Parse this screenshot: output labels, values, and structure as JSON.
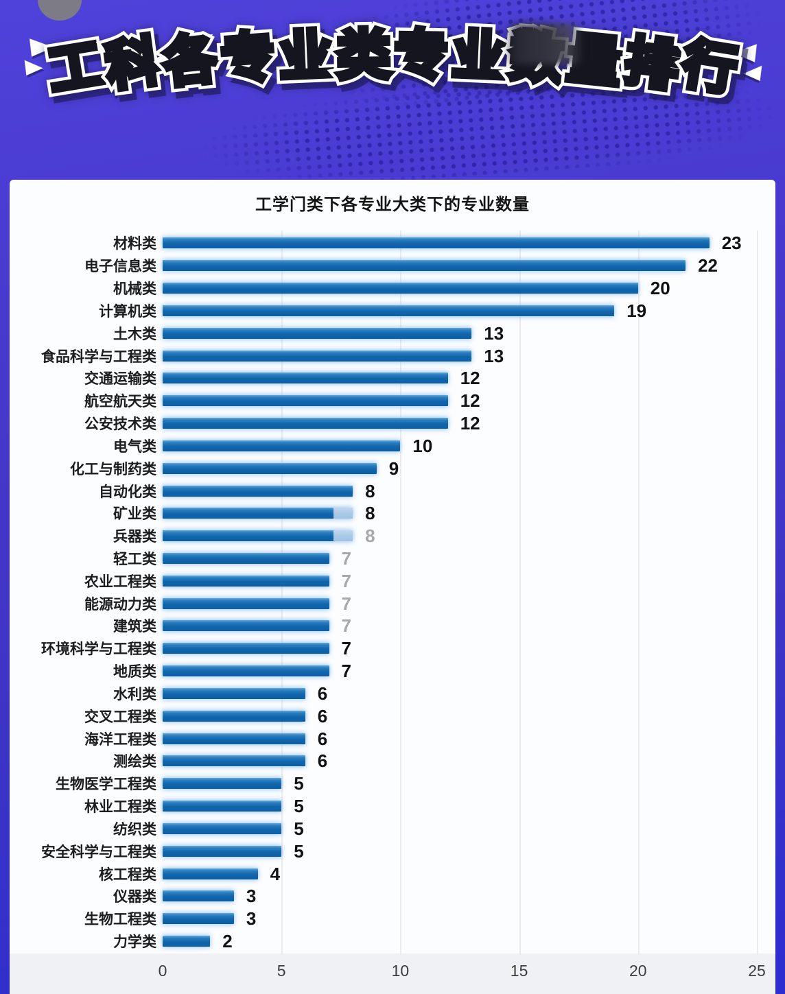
{
  "header": {
    "title": "工科各专业类专业数量排行",
    "censored_char_index": 8,
    "decor": {
      "speed_marks": "double-white-wedge emphasis lines, left and right of title",
      "halftone": "dark-blue dot bands above and below title",
      "corner_blob": "gray circle partially visible at top-left"
    }
  },
  "chart": {
    "title": "工学门类下各专业大类下的专业数量"
  },
  "chart_data": {
    "type": "bar",
    "orientation": "horizontal",
    "title": "工学门类下各专业大类下的专业数量",
    "xlabel": "",
    "ylabel": "",
    "xlim": [
      0,
      25
    ],
    "x_ticks": [
      0,
      5,
      10,
      15,
      20,
      25
    ],
    "grid": "vertical light gridlines",
    "legend": "none",
    "bars": [
      {
        "category": "材料类",
        "value": 23
      },
      {
        "category": "电子信息类",
        "value": 22
      },
      {
        "category": "机械类",
        "value": 20
      },
      {
        "category": "计算机类",
        "value": 19
      },
      {
        "category": "土木类",
        "value": 13
      },
      {
        "category": "食品科学与工程类",
        "value": 13
      },
      {
        "category": "交通运输类",
        "value": 12
      },
      {
        "category": "航空航天类",
        "value": 12
      },
      {
        "category": "公安技术类",
        "value": 12
      },
      {
        "category": "电气类",
        "value": 10
      },
      {
        "category": "化工与制药类",
        "value": 9
      },
      {
        "category": "自动化类",
        "value": 8
      },
      {
        "category": "矿业类",
        "value": 8,
        "transition_tip_from": 7.2
      },
      {
        "category": "兵器类",
        "value": 8,
        "transition_tip_from": 7.2,
        "value_label_muted": true
      },
      {
        "category": "轻工类",
        "value": 7,
        "value_label_muted": true
      },
      {
        "category": "农业工程类",
        "value": 7,
        "value_label_muted": true
      },
      {
        "category": "能源动力类",
        "value": 7,
        "value_label_muted": true
      },
      {
        "category": "建筑类",
        "value": 7,
        "value_label_muted": true
      },
      {
        "category": "环境科学与工程类",
        "value": 7
      },
      {
        "category": "地质类",
        "value": 7
      },
      {
        "category": "水利类",
        "value": 6
      },
      {
        "category": "交叉工程类",
        "value": 6
      },
      {
        "category": "海洋工程类",
        "value": 6
      },
      {
        "category": "测绘类",
        "value": 6
      },
      {
        "category": "生物医学工程类",
        "value": 5
      },
      {
        "category": "林业工程类",
        "value": 5
      },
      {
        "category": "纺织类",
        "value": 5
      },
      {
        "category": "安全科学与工程类",
        "value": 5
      },
      {
        "category": "核工程类",
        "value": 4
      },
      {
        "category": "仪器类",
        "value": 3
      },
      {
        "category": "生物工程类",
        "value": 3
      },
      {
        "category": "力学类",
        "value": 2
      }
    ]
  },
  "colors": {
    "background_violet": "#4436cf",
    "panel": "#fcfdff",
    "bar": "#1268ae",
    "bar_transition_tip": "#abc9e8",
    "muted_value_label": "#a8a8a8",
    "title_yellow": "#ffd21c",
    "axis_text": "#3d3d3d"
  }
}
